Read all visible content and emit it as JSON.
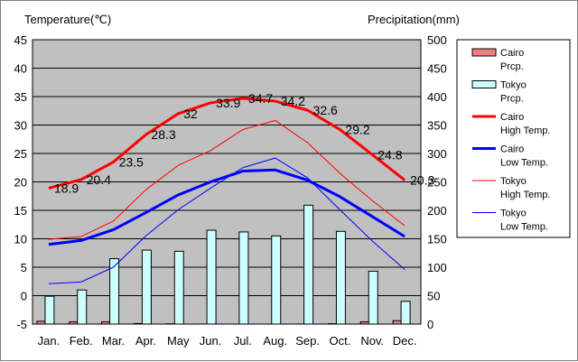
{
  "chart_data": {
    "type": "bar+line",
    "y_left_label": "Temperature(℃)",
    "y_right_label": "Precipitation(mm)",
    "y_left_range": [
      -5,
      45
    ],
    "y_left_ticks": [
      45,
      40,
      35,
      30,
      25,
      20,
      15,
      10,
      5,
      0,
      -5
    ],
    "y_right_range": [
      0,
      500
    ],
    "y_right_ticks": [
      500,
      450,
      400,
      350,
      300,
      250,
      200,
      150,
      100,
      50,
      0
    ],
    "grid": "horizontal",
    "legend_position": "right",
    "categories": [
      "Jan.",
      "Feb.",
      "Mar.",
      "Apr.",
      "May",
      "Jun.",
      "Jul.",
      "Aug.",
      "Sep.",
      "Oct.",
      "Nov.",
      "Dec."
    ],
    "bar_series": [
      {
        "name": "Cairo Prcp.",
        "legend": [
          "Cairo",
          "Prcp."
        ],
        "color": "#f08080",
        "values": [
          5,
          4,
          4,
          1,
          0.5,
          0.1,
          0,
          0,
          0.1,
          0.7,
          4,
          6
        ]
      },
      {
        "name": "Tokyo Prcp.",
        "legend": [
          "Tokyo",
          "Prcp."
        ],
        "color": "#ccffff",
        "values": [
          49,
          60,
          115,
          130,
          128,
          165,
          162,
          155,
          209,
          163,
          93,
          40
        ]
      }
    ],
    "line_series": [
      {
        "name": "Cairo High Temp.",
        "legend": [
          "Cairo",
          "High Temp."
        ],
        "color": "#ff0000",
        "width": 3,
        "values": [
          18.9,
          20.4,
          23.5,
          28.3,
          32,
          33.9,
          34.7,
          34.2,
          32.6,
          29.2,
          24.8,
          20.3
        ],
        "labels": [
          "18.9",
          "20.4",
          "23.5",
          "28.3",
          "32",
          "33.9",
          "34.7",
          "34.2",
          "32.6",
          "29.2",
          "24.8",
          "20.3"
        ]
      },
      {
        "name": "Cairo Low Temp.",
        "legend": [
          "Cairo",
          "Low Temp."
        ],
        "color": "#0000ff",
        "width": 3,
        "values": [
          9,
          9.7,
          11.6,
          14.6,
          17.7,
          20,
          21.9,
          22.1,
          20.3,
          17.4,
          13.9,
          10.4
        ]
      },
      {
        "name": "Tokyo High Temp.",
        "legend": [
          "Tokyo",
          "High Temp."
        ],
        "color": "#ff0000",
        "width": 1,
        "values": [
          9.9,
          10.4,
          13.1,
          18.6,
          22.9,
          25.5,
          29.2,
          30.8,
          26.9,
          21.5,
          16.7,
          12.3
        ]
      },
      {
        "name": "Tokyo Low Temp.",
        "legend": [
          "Tokyo",
          "Low Temp."
        ],
        "color": "#0000ff",
        "width": 1,
        "values": [
          2.1,
          2.4,
          5,
          10.5,
          15.1,
          18.9,
          22.5,
          24.2,
          20.7,
          15.1,
          9.6,
          4.6
        ]
      }
    ]
  }
}
